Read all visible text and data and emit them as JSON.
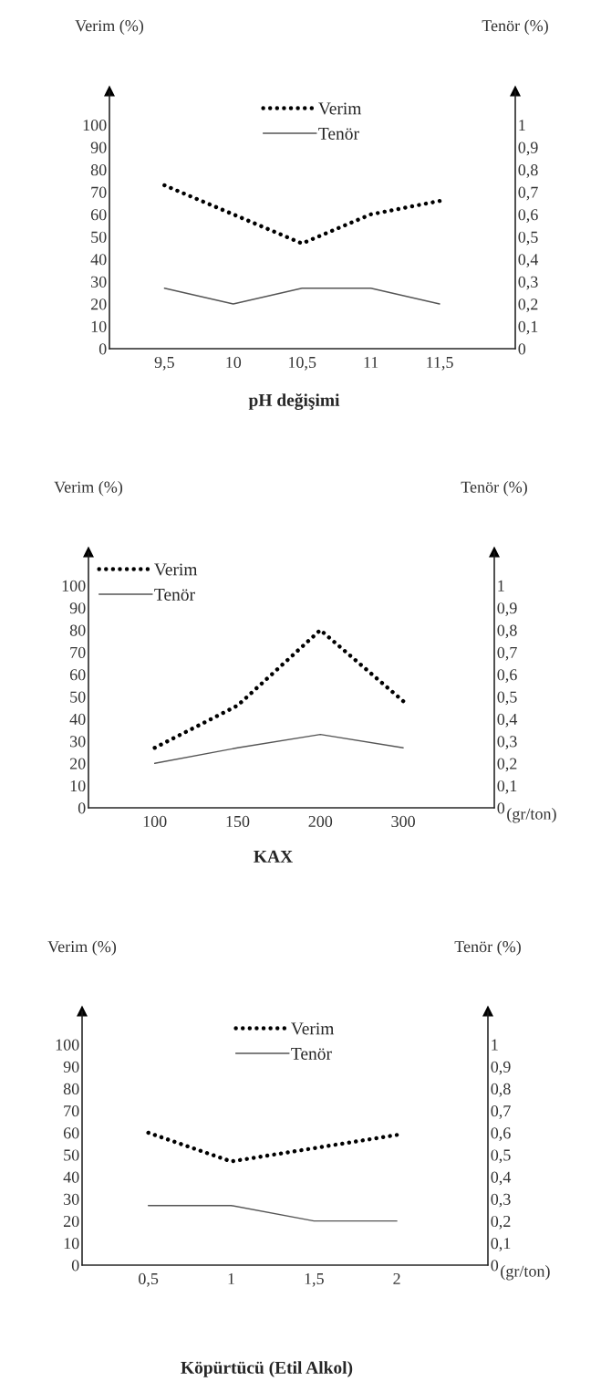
{
  "chart_data": [
    {
      "type": "line",
      "title": "pH değişimi",
      "ylabel": "Verim (%)",
      "y2label": "Tenör (%)",
      "categories": [
        "9,5",
        "10",
        "10,5",
        "11",
        "11,5"
      ],
      "series": [
        {
          "name": "Verim",
          "color": "#000000",
          "line_style": "dotted",
          "values": [
            73,
            60,
            47,
            60,
            66
          ]
        },
        {
          "name": "Tenör",
          "color": "#555555",
          "line_style": "solid",
          "axis": "y2",
          "values": [
            0.27,
            0.2,
            0.27,
            0.27,
            0.2
          ]
        }
      ],
      "ylim": [
        0,
        115
      ],
      "yticks": [
        0,
        10,
        20,
        30,
        40,
        50,
        60,
        70,
        80,
        90,
        100
      ],
      "y2lim": [
        0,
        1.15
      ],
      "y2ticks": [
        0,
        {
          "value": 0.1,
          "label": "0,1"
        },
        {
          "value": 0.2,
          "label": "0,2"
        },
        {
          "value": 0.3,
          "label": "0,3"
        },
        {
          "value": 0.4,
          "label": "0,4"
        },
        {
          "value": 0.5,
          "label": "0,5"
        },
        {
          "value": 0.6,
          "label": "0,6"
        },
        {
          "value": 0.7,
          "label": "0,7"
        },
        {
          "value": 0.8,
          "label": "0,8"
        },
        {
          "value": 0.9,
          "label": "0,9"
        },
        1
      ],
      "legend": "top",
      "grid": false,
      "marker": "none"
    },
    {
      "type": "line",
      "title": "KAX",
      "xlabel": "(gr/ton)",
      "ylabel": "Verim (%)",
      "y2label": "Tenör (%)",
      "categories": [
        "100",
        "150",
        "200",
        "300"
      ],
      "series": [
        {
          "name": "Verim",
          "color": "#000000",
          "line_style": "dotted",
          "values": [
            27,
            46,
            80,
            48
          ]
        },
        {
          "name": "Tenör",
          "color": "#555555",
          "line_style": "solid",
          "axis": "y2",
          "values": [
            0.2,
            0.27,
            0.33,
            0.27
          ]
        }
      ],
      "ylim": [
        0,
        115
      ],
      "yticks": [
        0,
        10,
        20,
        30,
        40,
        50,
        60,
        70,
        80,
        90,
        100
      ],
      "y2lim": [
        0,
        1.15
      ],
      "y2ticks": [
        0,
        {
          "value": 0.1,
          "label": "0,1"
        },
        {
          "value": 0.2,
          "label": "0,2"
        },
        {
          "value": 0.3,
          "label": "0,3"
        },
        {
          "value": 0.4,
          "label": "0,4"
        },
        {
          "value": 0.5,
          "label": "0,5"
        },
        {
          "value": 0.6,
          "label": "0,6"
        },
        {
          "value": 0.7,
          "label": "0,7"
        },
        {
          "value": 0.8,
          "label": "0,8"
        },
        {
          "value": 0.9,
          "label": "0,9"
        },
        1
      ],
      "legend": "top left",
      "grid": false,
      "marker": "none"
    },
    {
      "type": "line",
      "title": "Köpürtücü (Etil Alkol)",
      "xlabel": "(gr/ton)",
      "ylabel": "Verim (%)",
      "y2label": "Tenör (%)",
      "categories": [
        "0,5",
        "1",
        "1,5",
        "2"
      ],
      "series": [
        {
          "name": "Verim",
          "color": "#000000",
          "line_style": "dotted",
          "values": [
            60,
            47,
            53,
            59
          ]
        },
        {
          "name": "Tenör",
          "color": "#555555",
          "line_style": "solid",
          "axis": "y2",
          "values": [
            0.27,
            0.27,
            0.2,
            0.2
          ]
        }
      ],
      "ylim": [
        0,
        115
      ],
      "yticks": [
        0,
        10,
        20,
        30,
        40,
        50,
        60,
        70,
        80,
        90,
        100
      ],
      "y2lim": [
        0,
        1.15
      ],
      "y2ticks": [
        0,
        {
          "value": 0.1,
          "label": "0,1"
        },
        {
          "value": 0.2,
          "label": "0,2"
        },
        {
          "value": 0.3,
          "label": "0,3"
        },
        {
          "value": 0.4,
          "label": "0,4"
        },
        {
          "value": 0.5,
          "label": "0,5"
        },
        {
          "value": 0.6,
          "label": "0,6"
        },
        {
          "value": 0.7,
          "label": "0,7"
        },
        {
          "value": 0.8,
          "label": "0,8"
        },
        {
          "value": 0.9,
          "label": "0,9"
        },
        1
      ],
      "legend": "top",
      "grid": false,
      "marker": "none"
    }
  ]
}
